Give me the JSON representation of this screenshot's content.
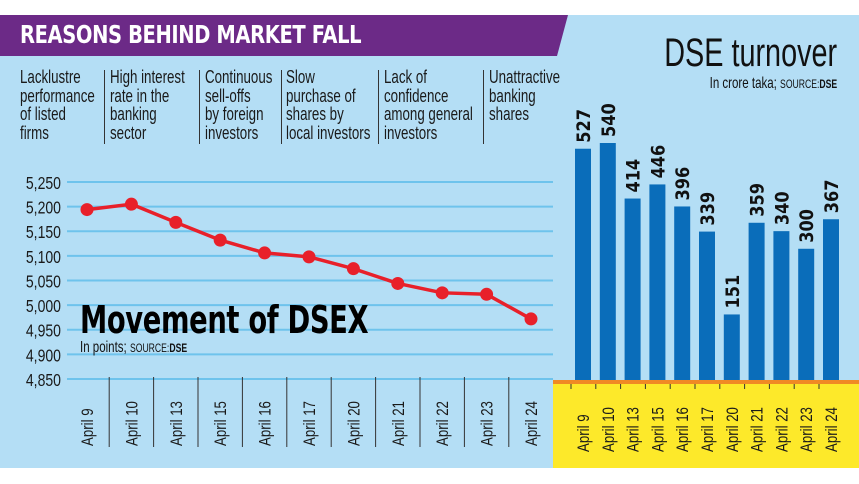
{
  "header": {
    "title": "REASONS BEHIND MARKET FALL",
    "color": "#6c2a87"
  },
  "reasons": [
    "Lacklustre\nperformance\nof listed\nfirms",
    "High interest\nrate in the\nbanking\nsector",
    "Continuous\nsell-offs\nby foreign\ninvestors",
    "Slow\npurchase of\nshares by\nlocal investors",
    "Lack of\nconfidence\namong general\ninvestors",
    "Unattractive\nbanking\nshares"
  ],
  "turnover": {
    "title": "DSE turnover",
    "unit": "In crore taka;",
    "source_label": "SOURCE:",
    "source": "DSE"
  },
  "dsex": {
    "title": "Movement of DSEX",
    "unit": "In points;",
    "source_label": "SOURCE:",
    "source": "DSE"
  },
  "colors": {
    "background": "#b4def5",
    "gridline": "#6ec3ec",
    "line": "#e8202a",
    "bar": "#0a6dba",
    "baseline": "#f08a24",
    "axis_panel": "#fde92a"
  },
  "chart_data": [
    {
      "type": "line",
      "title": "Movement of DSEX",
      "subtitle": "In points; SOURCE: DSE",
      "xlabel": "",
      "ylabel": "",
      "categories": [
        "April 9",
        "April 10",
        "April 13",
        "April 15",
        "April 16",
        "April 17",
        "April 20",
        "April 21",
        "April 22",
        "April 23",
        "April 24"
      ],
      "values": [
        5194,
        5205,
        5168,
        5132,
        5106,
        5098,
        5074,
        5044,
        5025,
        5022,
        4972
      ],
      "ylim": [
        4850,
        5250
      ],
      "yticks": [
        4850,
        4900,
        4950,
        5000,
        5050,
        5100,
        5150,
        5200,
        5250
      ],
      "ytick_labels": [
        "4,850",
        "4,900",
        "4,950",
        "5,000",
        "5,050",
        "5,100",
        "5,150",
        "5,200",
        "5,250"
      ],
      "grid": true
    },
    {
      "type": "bar",
      "title": "DSE turnover",
      "subtitle": "In crore taka; SOURCE: DSE",
      "xlabel": "",
      "ylabel": "",
      "categories": [
        "April 9",
        "April 10",
        "April 13",
        "April 15",
        "April 16",
        "April 17",
        "April 20",
        "April 21",
        "April 22",
        "April 23",
        "April 24"
      ],
      "values": [
        527,
        540,
        414,
        446,
        396,
        339,
        151,
        359,
        340,
        300,
        367
      ],
      "ylim": [
        0,
        540
      ],
      "data_labels": true
    }
  ]
}
